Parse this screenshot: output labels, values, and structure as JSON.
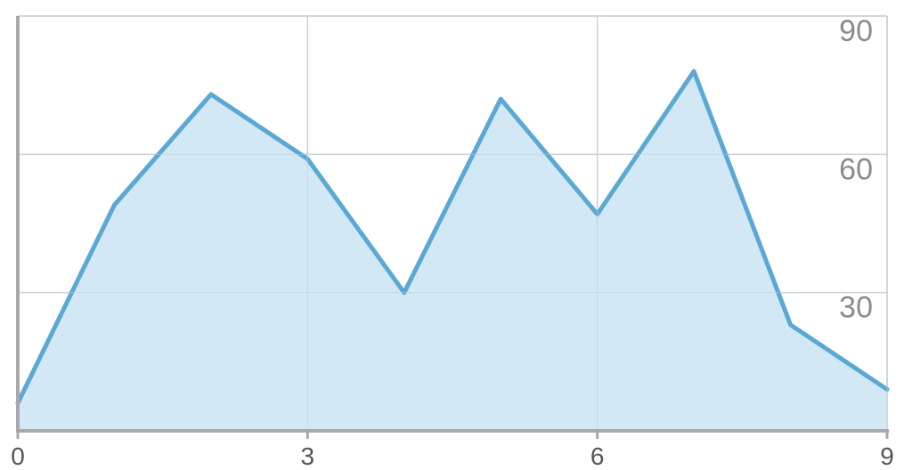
{
  "chart_data": {
    "type": "area",
    "title": "",
    "xlabel": "",
    "ylabel": "",
    "x": [
      0,
      1,
      2,
      3,
      4,
      5,
      6,
      7,
      8,
      9
    ],
    "series": [
      {
        "values": [
          6,
          49,
          73,
          59,
          30,
          72,
          47,
          78,
          23,
          9
        ]
      }
    ],
    "xlim": [
      0,
      9
    ],
    "ylim": [
      0,
      90
    ],
    "x_ticks": [
      "0",
      "3",
      "6",
      "9"
    ],
    "y_ticks": [
      "30",
      "60",
      "90"
    ],
    "y_axis_side": "right",
    "grid": true,
    "legend": "none",
    "colors": {
      "line": "#5ba8d4",
      "fill": "#d3e8f5",
      "grid": "#d6d6d6",
      "axis": "#a9a9a9"
    }
  }
}
